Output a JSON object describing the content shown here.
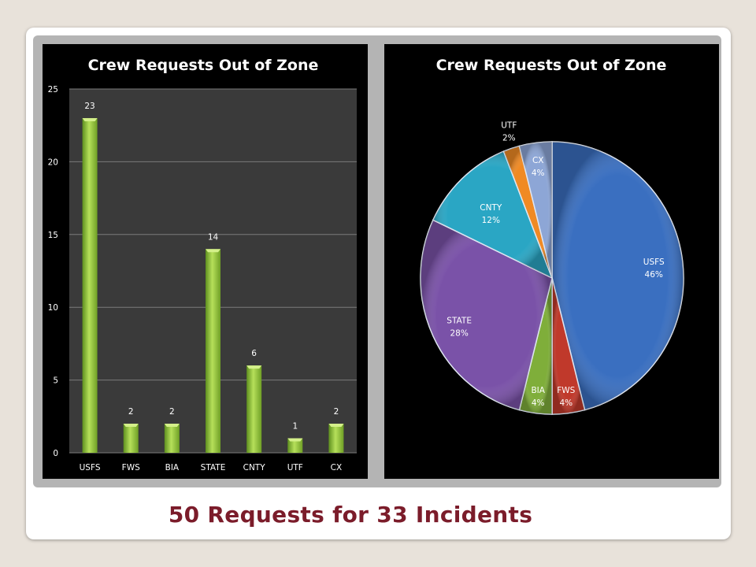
{
  "caption": "50 Requests for 33 Incidents",
  "colors": {
    "bar_fill": "#8dc63f",
    "plot_bg": "#3a3a3a",
    "caption": "#7b1c2a"
  },
  "chart_data": [
    {
      "type": "bar",
      "title": "Crew Requests Out of Zone",
      "categories": [
        "USFS",
        "FWS",
        "BIA",
        "STATE",
        "CNTY",
        "UTF",
        "CX"
      ],
      "values": [
        23,
        2,
        2,
        14,
        6,
        1,
        2
      ],
      "ylim": [
        0,
        25
      ],
      "yticks": [
        0,
        5,
        10,
        15,
        20,
        25
      ],
      "grid": true,
      "data_labels": true
    },
    {
      "type": "pie",
      "title": "Crew Requests Out of Zone",
      "slices": [
        {
          "label": "USFS",
          "value": 23,
          "pct": "46%",
          "color": "#3a6fc0"
        },
        {
          "label": "FWS",
          "value": 2,
          "pct": "4%",
          "color": "#c0392b"
        },
        {
          "label": "BIA",
          "value": 2,
          "pct": "4%",
          "color": "#7fae3a"
        },
        {
          "label": "STATE",
          "value": 14,
          "pct": "28%",
          "color": "#7a52a8"
        },
        {
          "label": "CNTY",
          "value": 6,
          "pct": "12%",
          "color": "#2aa6c4"
        },
        {
          "label": "UTF",
          "value": 1,
          "pct": "2%",
          "color": "#f08a24"
        },
        {
          "label": "CX",
          "value": 2,
          "pct": "4%",
          "color": "#8da6d6"
        }
      ]
    }
  ]
}
